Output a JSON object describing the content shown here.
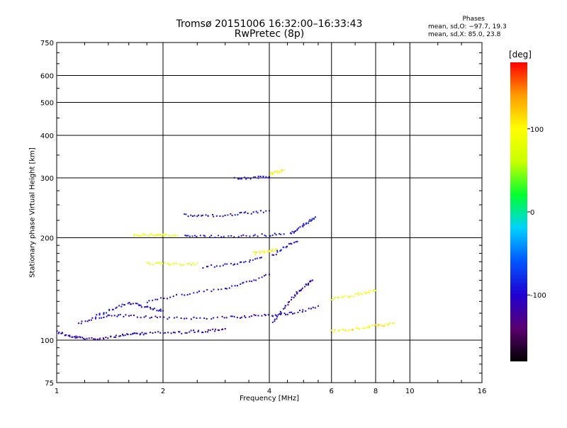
{
  "chart_data": {
    "type": "scatter",
    "title": "Tromsø 20151006 16:32:00–16:33:43",
    "subtitle": "RwPretec (8p)",
    "xlabel": "Frequency [MHz]",
    "ylabel": "Stationary phase Virtual Height [km]",
    "x_scale": "log",
    "y_scale": "log",
    "xlim": [
      1,
      16
    ],
    "ylim": [
      75,
      750
    ],
    "x_ticks": [
      1,
      2,
      4,
      6,
      8,
      10,
      16
    ],
    "y_ticks": [
      75,
      100,
      200,
      300,
      400,
      500,
      600,
      750
    ],
    "grid": true,
    "phases_legend": {
      "title": "Phases",
      "o_mode": "mean, sd,O: −97.7, 19.3",
      "x_mode": "mean, sd,X:  85.0, 23.8"
    },
    "colorbar": {
      "label": "[deg]",
      "ticks": [
        -100,
        0,
        100
      ],
      "range": [
        -180,
        180
      ],
      "colors": [
        "#000000",
        "#5a0070",
        "#1f00d0",
        "#0055ff",
        "#00d0ff",
        "#00ff30",
        "#c8ff00",
        "#ffff00",
        "#ff9d00",
        "#ff0000"
      ]
    },
    "traces": [
      {
        "phase": -110,
        "x": [
          1.0,
          1.05,
          1.1,
          1.15,
          1.2,
          1.3,
          1.4,
          1.5,
          1.6,
          1.7,
          1.8,
          2.0,
          2.2,
          2.4,
          2.6,
          2.8,
          3.0
        ],
        "y": [
          106,
          104,
          102,
          102,
          101,
          101,
          102,
          103,
          104,
          104,
          105,
          105,
          105,
          106,
          106,
          107,
          108
        ]
      },
      {
        "phase": -105,
        "x": [
          1.15,
          1.25,
          1.35,
          1.45,
          1.6,
          1.8,
          2.0,
          2.3,
          2.6,
          3.0,
          3.3,
          3.6,
          4.0,
          4.3,
          4.6,
          5.0,
          5.5
        ],
        "y": [
          112,
          115,
          117,
          118,
          118,
          117,
          116,
          116,
          116,
          117,
          117,
          118,
          118,
          119,
          120,
          122,
          126
        ]
      },
      {
        "phase": -100,
        "x": [
          1.3,
          1.4,
          1.5,
          1.6,
          1.7,
          1.8,
          1.9,
          2.0
        ],
        "y": [
          118,
          122,
          126,
          128,
          127,
          125,
          123,
          122
        ]
      },
      {
        "phase": -95,
        "x": [
          2.3,
          2.5,
          2.7,
          3.0,
          3.3,
          3.6,
          4.0
        ],
        "y": [
          233,
          232,
          232,
          233,
          235,
          237,
          240
        ]
      },
      {
        "phase": -95,
        "x": [
          2.3,
          2.5,
          2.8,
          3.2,
          3.6,
          4.0,
          4.4
        ],
        "y": [
          203,
          202,
          202,
          202,
          203,
          204,
          205
        ]
      },
      {
        "phase": -100,
        "x": [
          1.8,
          2.0,
          2.3,
          2.6,
          3.0,
          3.3,
          3.6,
          4.0
        ],
        "y": [
          130,
          133,
          136,
          139,
          142,
          146,
          150,
          156
        ]
      },
      {
        "phase": -95,
        "x": [
          2.6,
          2.9,
          3.2,
          3.5,
          3.8
        ],
        "y": [
          164,
          166,
          168,
          171,
          175
        ]
      },
      {
        "phase": -100,
        "x": [
          3.2,
          3.5,
          3.8,
          4.0
        ],
        "y": [
          300,
          300,
          301,
          302
        ]
      },
      {
        "phase": -110,
        "x": [
          4.1,
          4.3,
          4.5,
          4.7,
          4.9,
          5.1,
          5.3
        ],
        "y": [
          112,
          120,
          128,
          135,
          140,
          145,
          150
        ]
      },
      {
        "phase": -95,
        "x": [
          4.1,
          4.3,
          4.5,
          4.8
        ],
        "y": [
          178,
          184,
          190,
          195
        ]
      },
      {
        "phase": -90,
        "x": [
          4.6,
          4.8,
          5.0,
          5.2,
          5.4
        ],
        "y": [
          205,
          212,
          218,
          224,
          230
        ]
      },
      {
        "phase": 90,
        "x": [
          1.65,
          1.75,
          1.85,
          1.95,
          2.05,
          2.2
        ],
        "y": [
          204,
          204,
          204,
          204,
          203,
          203
        ]
      },
      {
        "phase": 85,
        "x": [
          1.8,
          1.95,
          2.1,
          2.3,
          2.5
        ],
        "y": [
          168,
          168,
          167,
          167,
          168
        ]
      },
      {
        "phase": 95,
        "x": [
          3.6,
          3.8,
          4.0,
          4.2
        ],
        "y": [
          180,
          181,
          183,
          185
        ]
      },
      {
        "phase": 100,
        "x": [
          4.0,
          4.2,
          4.4
        ],
        "y": [
          308,
          312,
          316
        ]
      },
      {
        "phase": 105,
        "x": [
          6.0,
          6.5,
          7.0,
          7.5,
          8.0,
          8.5,
          9.0
        ],
        "y": [
          106,
          107,
          108,
          109,
          110,
          111,
          112
        ]
      },
      {
        "phase": 90,
        "x": [
          6.0,
          6.5,
          7.0,
          7.5,
          8.0
        ],
        "y": [
          132,
          134,
          136,
          138,
          140
        ]
      }
    ]
  }
}
